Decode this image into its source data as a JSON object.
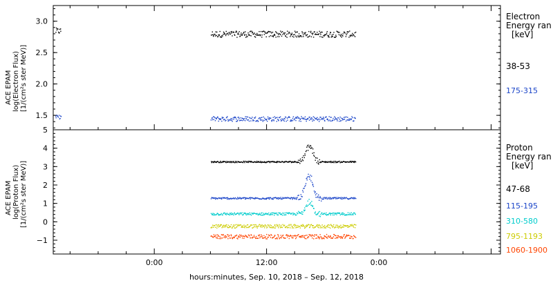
{
  "chart_data": [
    {
      "type": "scatter",
      "panel": "electron",
      "ylabel_lines": [
        "ACE EPAM",
        "log(Electron Flux)",
        "[1/(cm²s ster MeV)]"
      ],
      "yticks": [
        "3.0",
        "2.5",
        "2.0",
        "1.5"
      ],
      "ylim": [
        1.27,
        3.25
      ],
      "legend_title": [
        "Electron",
        "Energy ran",
        "[keV]"
      ],
      "series": [
        {
          "name": "38-53",
          "color": "#000000",
          "segments": [
            {
              "start": -10.6,
              "end": -10.0,
              "level": 2.85,
              "noise": 0.05
            },
            {
              "start": 6.0,
              "end": 21.5,
              "level": 2.8,
              "noise": 0.05
            }
          ]
        },
        {
          "name": "175-315",
          "color": "#1a44c8",
          "segments": [
            {
              "start": -10.6,
              "end": -10.0,
              "level": 1.48,
              "noise": 0.03
            },
            {
              "start": 6.0,
              "end": 21.5,
              "level": 1.45,
              "noise": 0.04
            }
          ]
        }
      ]
    },
    {
      "type": "scatter",
      "panel": "proton",
      "ylabel_lines": [
        "ACE EPAM",
        "log(Proton Flux)",
        "[1/(cm²s ster MeV)]"
      ],
      "yticks": [
        "5",
        "4",
        "3",
        "2",
        "1",
        "0",
        "−1"
      ],
      "ylim": [
        -1.75,
        5.0
      ],
      "legend_title": [
        "Proton",
        "Energy ran",
        "[keV]"
      ],
      "series": [
        {
          "name": "47-68",
          "color": "#000000",
          "segments": [
            {
              "start": 6.0,
              "end": 21.5,
              "level": 3.28,
              "noise": 0.04,
              "burst": 4.3
            }
          ]
        },
        {
          "name": "115-195",
          "color": "#1a44c8",
          "segments": [
            {
              "start": 6.0,
              "end": 21.5,
              "level": 1.3,
              "noise": 0.05,
              "burst": 2.8
            }
          ]
        },
        {
          "name": "310-580",
          "color": "#00cccc",
          "segments": [
            {
              "start": 6.0,
              "end": 21.5,
              "level": 0.45,
              "noise": 0.07,
              "burst": 1.2
            }
          ]
        },
        {
          "name": "795-1193",
          "color": "#cccc00",
          "segments": [
            {
              "start": 6.0,
              "end": 21.5,
              "level": -0.22,
              "noise": 0.1
            }
          ]
        },
        {
          "name": "1060-1900",
          "color": "#ff4400",
          "segments": [
            {
              "start": 6.0,
              "end": 21.5,
              "level": -0.78,
              "noise": 0.12
            }
          ]
        }
      ]
    }
  ],
  "x_axis": {
    "xlim": [
      -10.8,
      37.0
    ],
    "ticks": [
      {
        "value": 0,
        "label": "0:00"
      },
      {
        "value": 12,
        "label": "12:00"
      },
      {
        "value": 24,
        "label": "0:00"
      }
    ],
    "xlabel": "hours:minutes, Sep. 10, 2018 – Sep. 12, 2018"
  }
}
